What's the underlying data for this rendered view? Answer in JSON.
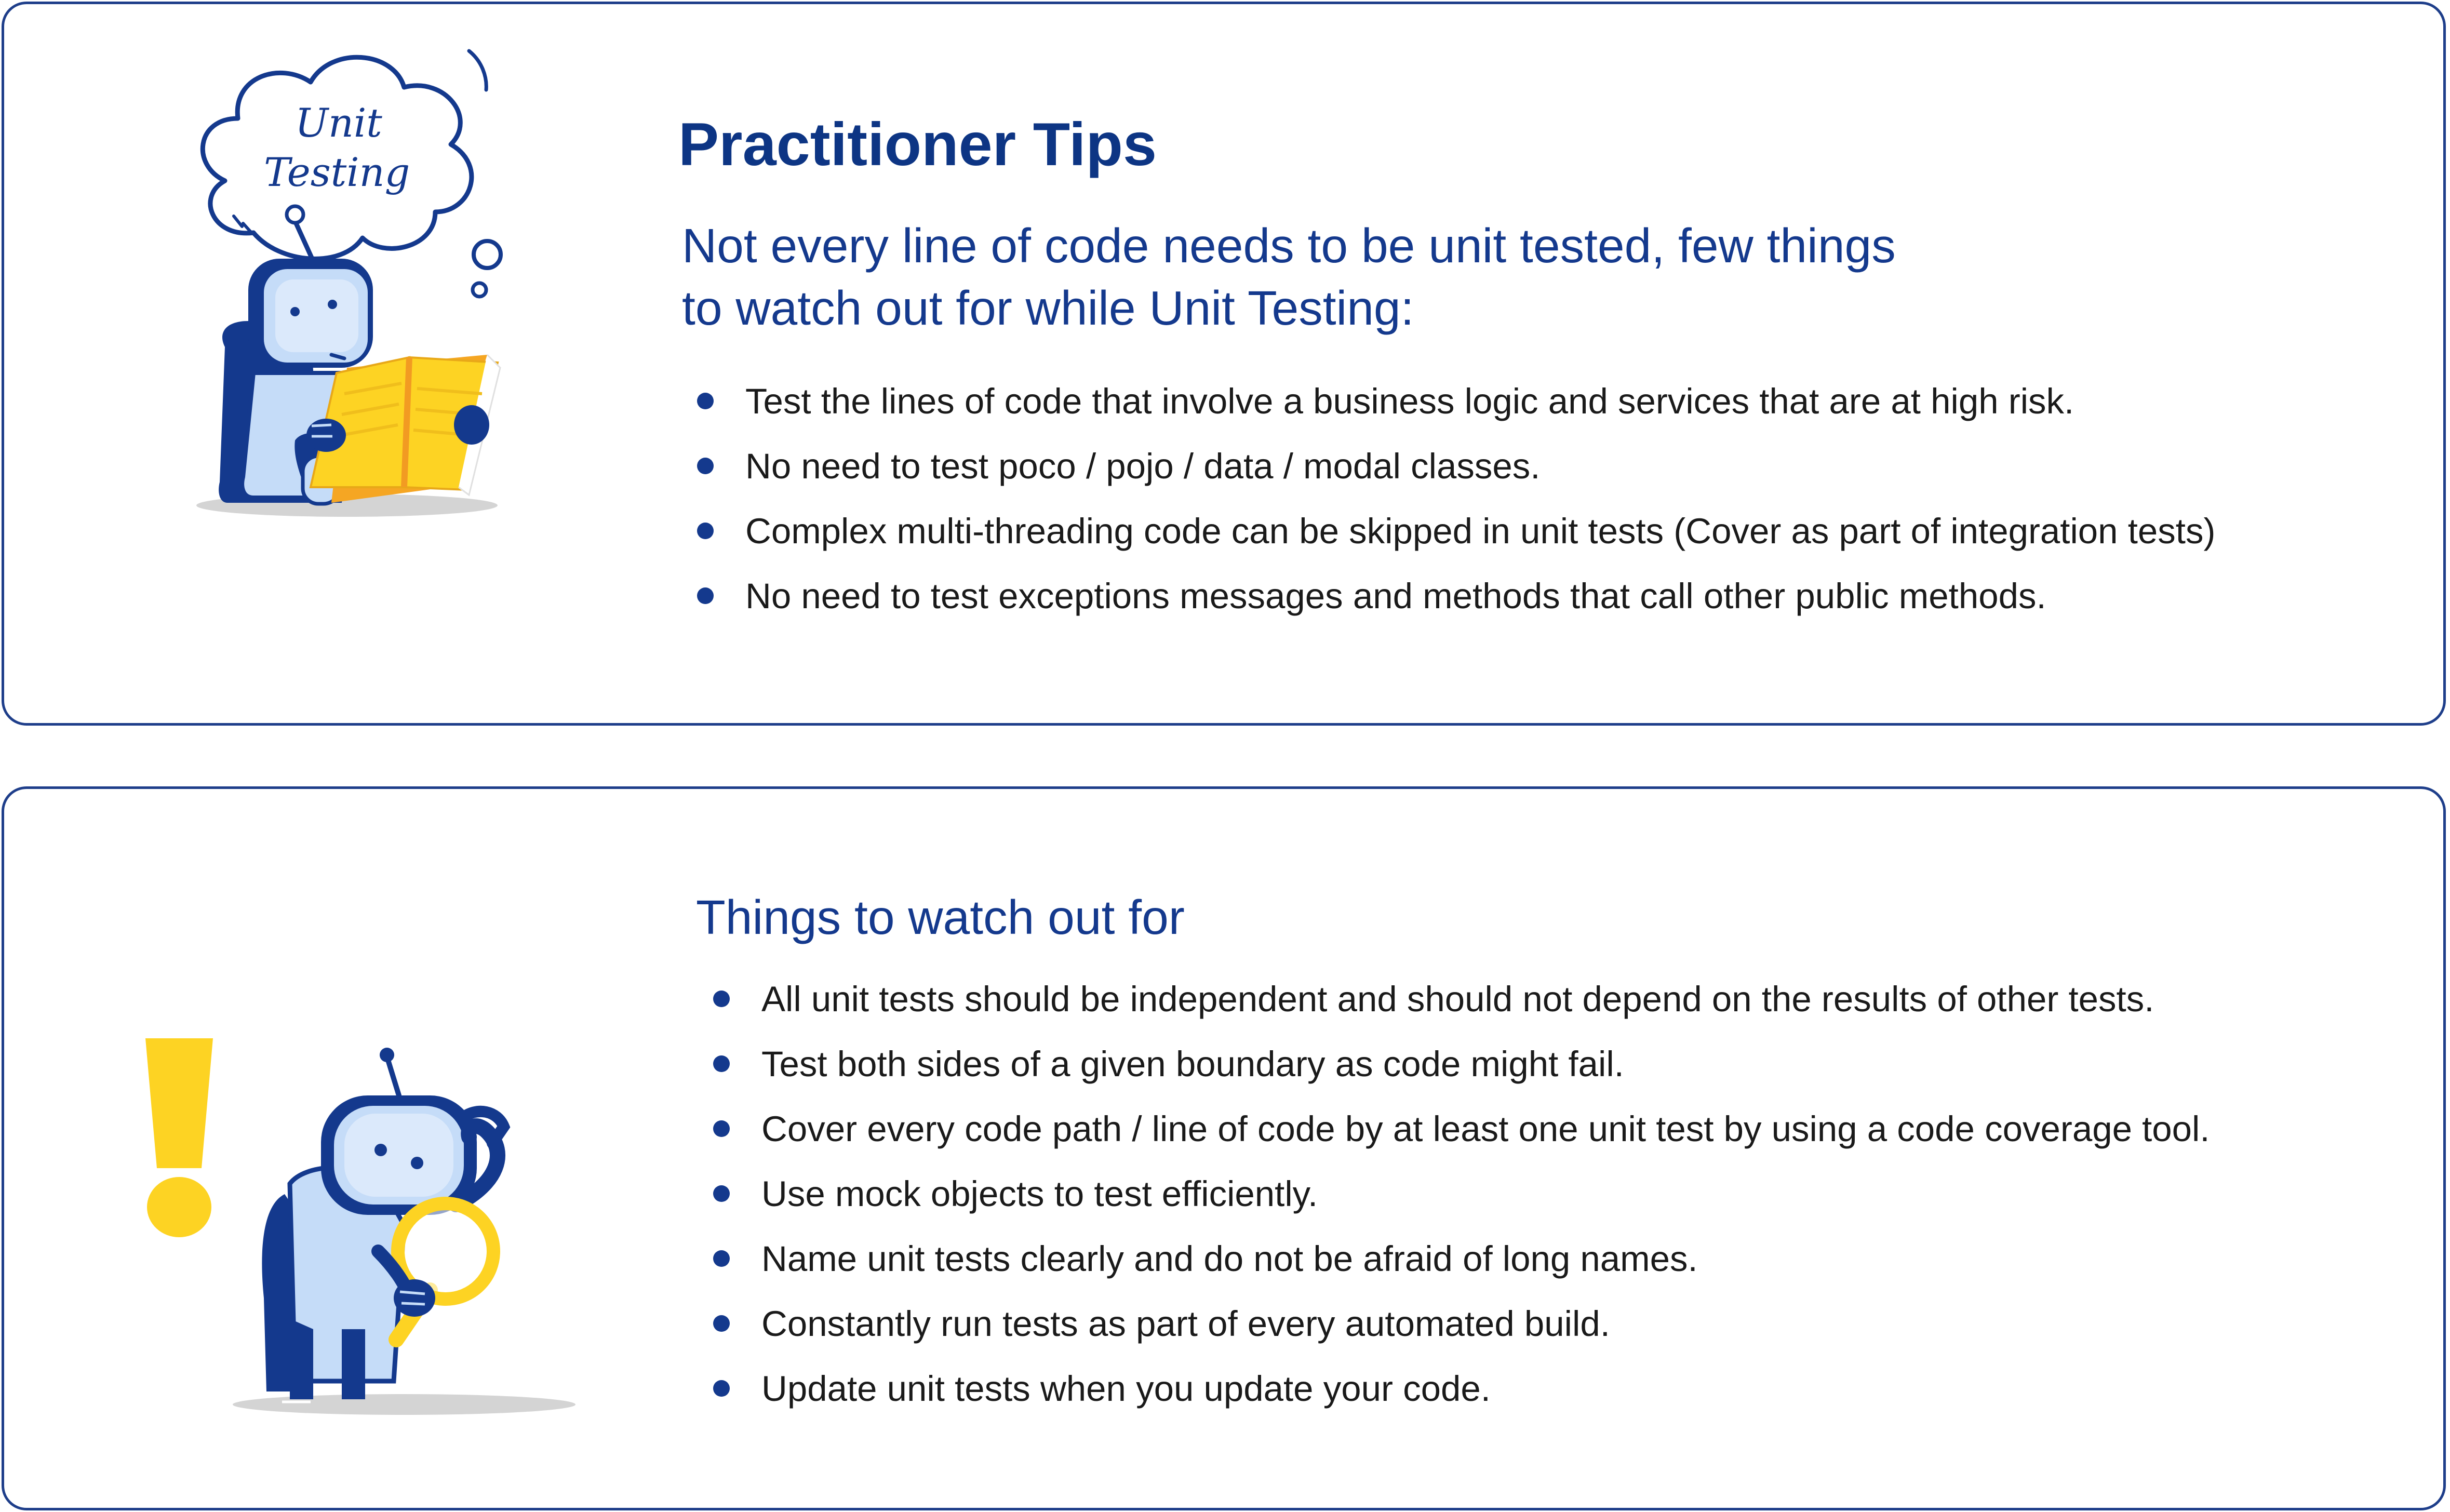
{
  "practitioner_tips": {
    "bubble_line1": "Unit",
    "bubble_line2": "Testing",
    "title": "Practitioner Tips",
    "intro_line1": "Not every line of code needs to be unit tested, few things",
    "intro_line2": "to watch out for while Unit Testing:",
    "items": [
      "Test the lines of code that involve a business logic and services that are at high risk.",
      "No need to test poco / pojo / data / modal classes.",
      "Complex multi-threading code can be skipped in unit tests (Cover as part of integration tests)",
      "No need to test exceptions messages and methods that call other public methods."
    ]
  },
  "watch_out": {
    "title": "Things to watch out for",
    "items": [
      "All unit tests should be independent and should not depend on the results of other tests.",
      "Test both sides of a given boundary as code might fail.",
      "Cover every code path / line of code by at least one unit test by using a code coverage tool.",
      "Use mock objects to test efficiently.",
      "Name unit tests clearly and do not be afraid of long names.",
      "Constantly run tests as part of every automated build.",
      "Update unit tests when you update your code."
    ]
  },
  "colors": {
    "navy": "#14398d",
    "light_blue": "#c5dcf8",
    "yellow": "#fdd323",
    "orange": "#f29b22",
    "border": "#1e3e8a"
  },
  "icons": [
    "thought-bubble-icon",
    "robot-reading-icon",
    "exclamation-icon",
    "robot-magnifier-icon"
  ]
}
